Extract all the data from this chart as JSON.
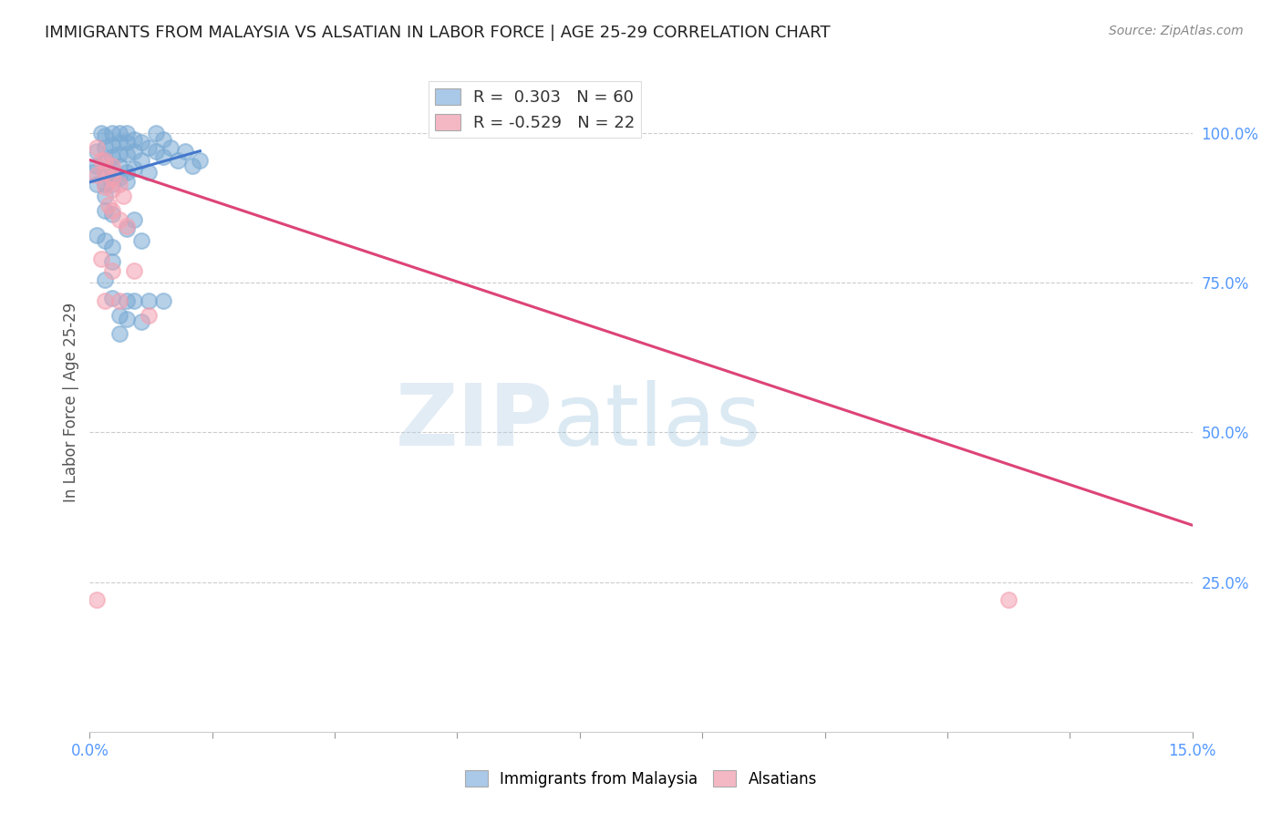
{
  "title": "IMMIGRANTS FROM MALAYSIA VS ALSATIAN IN LABOR FORCE | AGE 25-29 CORRELATION CHART",
  "source": "Source: ZipAtlas.com",
  "ylabel_label": "In Labor Force | Age 25-29",
  "xlim": [
    0.0,
    0.15
  ],
  "ylim": [
    0.0,
    1.1
  ],
  "xticks": [
    0.0,
    0.0167,
    0.0333,
    0.05,
    0.0667,
    0.0833,
    0.1,
    0.1167,
    0.1333,
    0.15
  ],
  "xtick_labels": [
    "0.0%",
    "",
    "",
    "",
    "",
    "",
    "",
    "",
    "",
    "15.0%"
  ],
  "ytick_labels_right": [
    "100.0%",
    "75.0%",
    "50.0%",
    "25.0%"
  ],
  "yticks_right": [
    1.0,
    0.75,
    0.5,
    0.25
  ],
  "watermark_zip": "ZIP",
  "watermark_atlas": "atlas",
  "blue_color": "#7aaad4",
  "pink_color": "#f4a0b0",
  "trend_blue": "#4477cc",
  "trend_pink": "#dd4477",
  "blue_scatter": [
    [
      0.0005,
      0.935
    ],
    [
      0.001,
      0.97
    ],
    [
      0.001,
      0.945
    ],
    [
      0.001,
      0.915
    ],
    [
      0.0015,
      1.0
    ],
    [
      0.002,
      0.995
    ],
    [
      0.002,
      0.975
    ],
    [
      0.002,
      0.955
    ],
    [
      0.002,
      0.935
    ],
    [
      0.002,
      0.915
    ],
    [
      0.002,
      0.895
    ],
    [
      0.003,
      1.0
    ],
    [
      0.003,
      0.98
    ],
    [
      0.003,
      0.96
    ],
    [
      0.003,
      0.94
    ],
    [
      0.003,
      0.93
    ],
    [
      0.003,
      0.915
    ],
    [
      0.004,
      1.0
    ],
    [
      0.004,
      0.985
    ],
    [
      0.004,
      0.965
    ],
    [
      0.004,
      0.945
    ],
    [
      0.004,
      0.925
    ],
    [
      0.005,
      1.0
    ],
    [
      0.005,
      0.985
    ],
    [
      0.005,
      0.965
    ],
    [
      0.005,
      0.935
    ],
    [
      0.005,
      0.92
    ],
    [
      0.006,
      0.99
    ],
    [
      0.006,
      0.97
    ],
    [
      0.006,
      0.94
    ],
    [
      0.007,
      0.985
    ],
    [
      0.007,
      0.955
    ],
    [
      0.008,
      0.975
    ],
    [
      0.008,
      0.935
    ],
    [
      0.009,
      1.0
    ],
    [
      0.009,
      0.97
    ],
    [
      0.01,
      0.99
    ],
    [
      0.01,
      0.96
    ],
    [
      0.011,
      0.975
    ],
    [
      0.012,
      0.955
    ],
    [
      0.013,
      0.97
    ],
    [
      0.014,
      0.945
    ],
    [
      0.015,
      0.955
    ],
    [
      0.002,
      0.82
    ],
    [
      0.003,
      0.785
    ],
    [
      0.002,
      0.755
    ],
    [
      0.003,
      0.725
    ],
    [
      0.004,
      0.695
    ],
    [
      0.005,
      0.72
    ],
    [
      0.004,
      0.665
    ],
    [
      0.005,
      0.69
    ],
    [
      0.001,
      0.83
    ],
    [
      0.003,
      0.81
    ],
    [
      0.006,
      0.72
    ],
    [
      0.007,
      0.685
    ],
    [
      0.008,
      0.72
    ],
    [
      0.01,
      0.72
    ],
    [
      0.002,
      0.87
    ],
    [
      0.003,
      0.865
    ],
    [
      0.005,
      0.84
    ],
    [
      0.006,
      0.855
    ],
    [
      0.007,
      0.82
    ]
  ],
  "pink_scatter": [
    [
      0.001,
      0.975
    ],
    [
      0.0015,
      0.955
    ],
    [
      0.001,
      0.93
    ],
    [
      0.002,
      0.955
    ],
    [
      0.002,
      0.935
    ],
    [
      0.002,
      0.91
    ],
    [
      0.003,
      0.945
    ],
    [
      0.003,
      0.925
    ],
    [
      0.003,
      0.905
    ],
    [
      0.004,
      0.915
    ],
    [
      0.0045,
      0.895
    ],
    [
      0.0025,
      0.88
    ],
    [
      0.003,
      0.87
    ],
    [
      0.004,
      0.855
    ],
    [
      0.005,
      0.845
    ],
    [
      0.0015,
      0.79
    ],
    [
      0.003,
      0.77
    ],
    [
      0.002,
      0.72
    ],
    [
      0.004,
      0.72
    ],
    [
      0.006,
      0.77
    ],
    [
      0.008,
      0.695
    ],
    [
      0.001,
      0.22
    ],
    [
      0.125,
      0.22
    ]
  ],
  "blue_trend_x": [
    0.0,
    0.015
  ],
  "blue_trend_y": [
    0.918,
    0.97
  ],
  "pink_trend_x": [
    0.0,
    0.15
  ],
  "pink_trend_y": [
    0.955,
    0.345
  ],
  "background_color": "#ffffff",
  "grid_color": "#cccccc",
  "legend_text_color": "#333333",
  "axis_tick_color": "#5599ff"
}
